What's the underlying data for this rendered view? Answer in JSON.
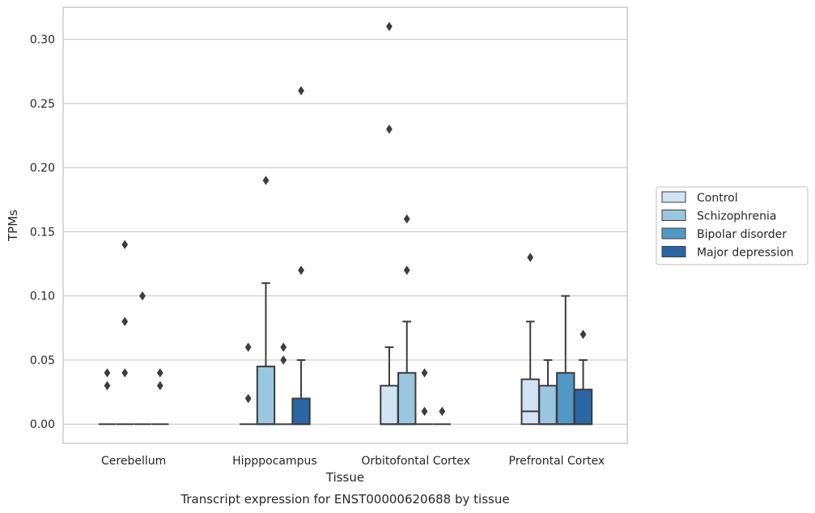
{
  "chart_data": {
    "type": "box",
    "title": "",
    "caption": "Transcript expression for ENST00000620688 by tissue",
    "xlabel": "Tissue",
    "ylabel": "TPMs",
    "ylim": [
      -0.015,
      0.325
    ],
    "yticks": [
      "0.00",
      "0.05",
      "0.10",
      "0.15",
      "0.20",
      "0.25",
      "0.30"
    ],
    "ytick_values": [
      0,
      0.05,
      0.1,
      0.15,
      0.2,
      0.25,
      0.3
    ],
    "grid": "horizontal",
    "legend_position": "right",
    "categories": [
      "Cerebellum",
      "Hipppocampus",
      "Orbitofontal Cortex",
      "Prefrontal Cortex"
    ],
    "series": [
      {
        "name": "Control",
        "color": "#d2e3f3",
        "boxes": [
          {
            "q1": 0,
            "median": 0,
            "q3": 0,
            "whislo": 0,
            "whishi": 0,
            "fliers": [
              0.03,
              0.04
            ]
          },
          {
            "q1": 0,
            "median": 0,
            "q3": 0,
            "whislo": 0,
            "whishi": 0,
            "fliers": [
              0.02,
              0.06
            ]
          },
          {
            "q1": 0,
            "median": 0,
            "q3": 0.03,
            "whislo": 0,
            "whishi": 0.06,
            "fliers": [
              0.23,
              0.31
            ]
          },
          {
            "q1": 0,
            "median": 0.01,
            "q3": 0.035,
            "whislo": 0,
            "whishi": 0.08,
            "fliers": [
              0.13
            ]
          }
        ]
      },
      {
        "name": "Schizophrenia",
        "color": "#9ac7e0",
        "boxes": [
          {
            "q1": 0,
            "median": 0,
            "q3": 0,
            "whislo": 0,
            "whishi": 0,
            "fliers": [
              0.04,
              0.08,
              0.14
            ]
          },
          {
            "q1": 0,
            "median": 0,
            "q3": 0.045,
            "whislo": 0,
            "whishi": 0.11,
            "fliers": [
              0.19
            ]
          },
          {
            "q1": 0,
            "median": 0,
            "q3": 0.04,
            "whislo": 0,
            "whishi": 0.08,
            "fliers": [
              0.12,
              0.16
            ]
          },
          {
            "q1": 0,
            "median": 0,
            "q3": 0.03,
            "whislo": 0,
            "whishi": 0.05,
            "fliers": []
          }
        ]
      },
      {
        "name": "Bipolar disorder",
        "color": "#5198c6",
        "boxes": [
          {
            "q1": 0,
            "median": 0,
            "q3": 0,
            "whislo": 0,
            "whishi": 0,
            "fliers": [
              0.1
            ]
          },
          {
            "q1": 0,
            "median": 0,
            "q3": 0,
            "whislo": 0,
            "whishi": 0,
            "fliers": [
              0.05,
              0.06
            ]
          },
          {
            "q1": 0,
            "median": 0,
            "q3": 0,
            "whislo": 0,
            "whishi": 0,
            "fliers": [
              0.01,
              0.04
            ]
          },
          {
            "q1": 0,
            "median": 0,
            "q3": 0.04,
            "whislo": 0,
            "whishi": 0.1,
            "fliers": []
          }
        ]
      },
      {
        "name": "Major depression",
        "color": "#2966a5",
        "boxes": [
          {
            "q1": 0,
            "median": 0,
            "q3": 0,
            "whislo": 0,
            "whishi": 0,
            "fliers": [
              0.03,
              0.04
            ]
          },
          {
            "q1": 0,
            "median": 0,
            "q3": 0.02,
            "whislo": 0,
            "whishi": 0.05,
            "fliers": [
              0.12,
              0.26
            ]
          },
          {
            "q1": 0,
            "median": 0,
            "q3": 0,
            "whislo": 0,
            "whishi": 0,
            "fliers": [
              0.01
            ]
          },
          {
            "q1": 0,
            "median": 0,
            "q3": 0.027,
            "whislo": 0,
            "whishi": 0.05,
            "fliers": [
              0.07
            ]
          }
        ]
      }
    ]
  }
}
